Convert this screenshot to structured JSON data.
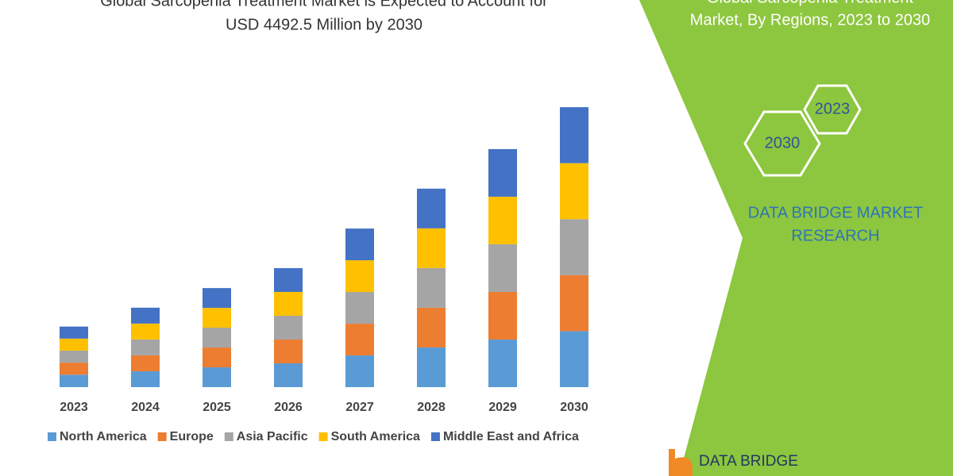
{
  "chart_data": {
    "type": "stacked_bar",
    "title": [
      "Global Sarcopenia Treatment Market is Expected to Account for",
      "USD 4492.5 Million by 2030"
    ],
    "categories": [
      "2023",
      "2024",
      "2025",
      "2026",
      "2027",
      "2028",
      "2029",
      "2030"
    ],
    "series": [
      {
        "name": "North America",
        "color": "#5b9bd5",
        "values": [
          200,
          255,
          318,
          382,
          509,
          637,
          764,
          898.5
        ]
      },
      {
        "name": "Europe",
        "color": "#ed7d31",
        "values": [
          193,
          255,
          318,
          382,
          509,
          637,
          764,
          898.5
        ]
      },
      {
        "name": "Asia Pacific",
        "color": "#a5a5a5",
        "values": [
          193,
          255,
          318,
          382,
          509,
          637,
          764,
          898.5
        ]
      },
      {
        "name": "South America",
        "color": "#ffc000",
        "values": [
          193,
          255,
          318,
          382,
          509,
          637,
          764,
          898.5
        ]
      },
      {
        "name": "Middle East and Africa",
        "color": "#4472c4",
        "values": [
          193,
          255,
          318,
          382,
          509,
          637,
          764,
          898.5
        ]
      }
    ],
    "ylim": [
      0,
      4500
    ]
  },
  "side_panel": {
    "title": [
      "Global Sarcopenia Treatment",
      "Market, By Regions, 2023 to 2030"
    ],
    "hexagons": [
      "2023",
      "2030"
    ],
    "brand": [
      "DATA BRIDGE MARKET",
      "RESEARCH"
    ]
  },
  "logo": {
    "text": "DATA BRIDGE"
  }
}
